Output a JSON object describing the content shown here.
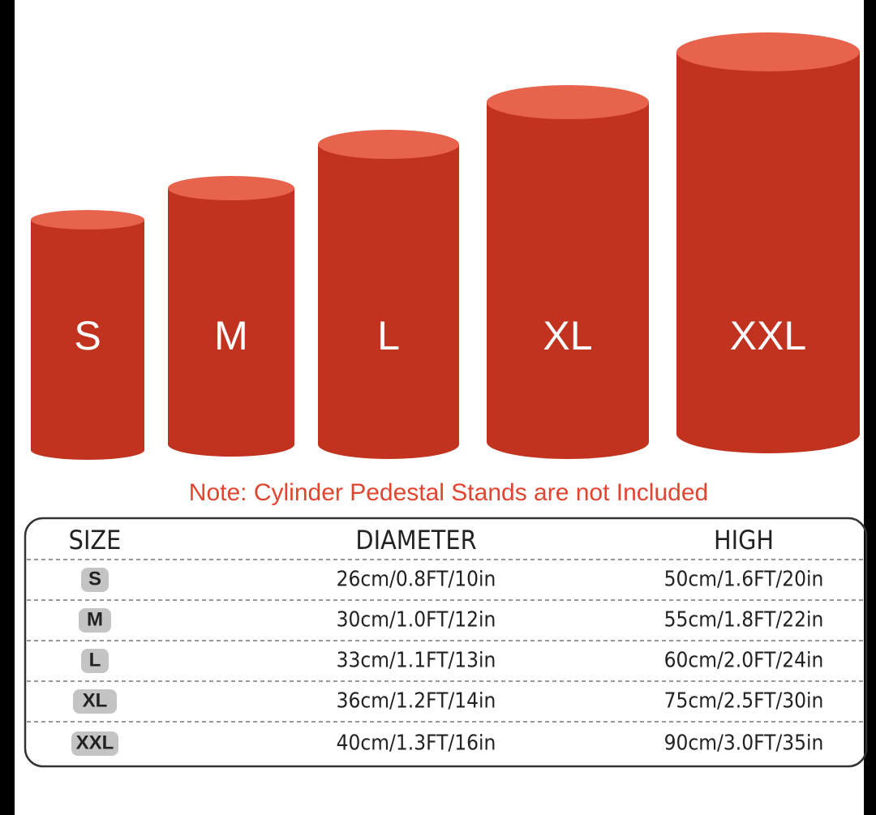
{
  "cylinders": [
    {
      "label": "S"
    },
    {
      "label": "M"
    },
    {
      "label": "L"
    },
    {
      "label": "XL"
    },
    {
      "label": "XXL"
    }
  ],
  "note": "Note: Cylinder Pedestal Stands are not Included",
  "table": {
    "header": [
      "SIZE",
      "DIAMETER",
      "HIGH"
    ],
    "rows": [
      [
        "S",
        "26cm/0.8FT/10in",
        "50cm/1.6FT/20in"
      ],
      [
        "M",
        "30cm/1.0FT/12in",
        "55cm/1.8FT/22in"
      ],
      [
        "L",
        "33cm/1.1FT/13in",
        "60cm/2.0FT/24in"
      ],
      [
        "XL",
        "36cm/1.2FT/14in",
        "75cm/2.5FT/30in"
      ],
      [
        "XXL",
        "40cm/1.3FT/16in",
        "90cm/3.0FT/35in"
      ]
    ]
  }
}
